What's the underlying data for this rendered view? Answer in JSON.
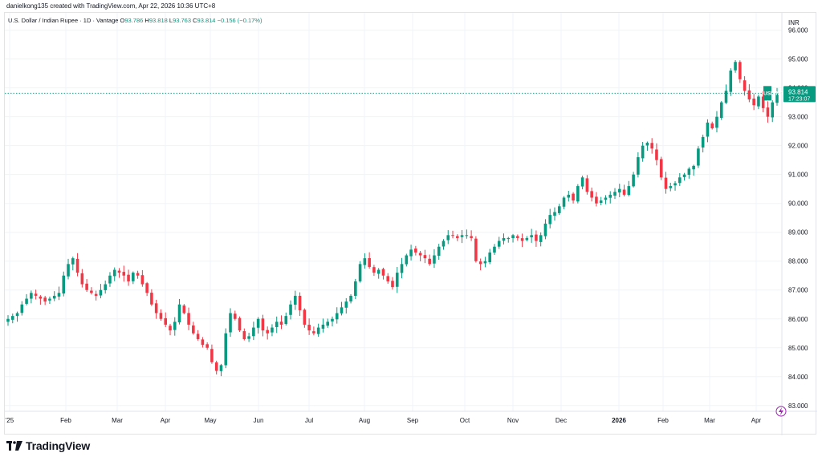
{
  "credit": "danielkong135 created with TradingView.com, Apr 22, 2026 10:36 UTC+8",
  "legend": {
    "symbol": "U.S. Dollar / Indian Rupee · 1D · Vantage",
    "o_label": "O",
    "o_value": "93.786",
    "h_label": "H",
    "h_value": "93.818",
    "l_label": "L",
    "l_value": "93.763",
    "c_label": "C",
    "c_value": "93.814",
    "change": "−0.156 (−0.17%)"
  },
  "currency_label": "INR",
  "price_tag": {
    "symbol": "USDINR",
    "price": "93.814",
    "countdown": "17:23:07"
  },
  "brand": "TradingView",
  "colors": {
    "up": "#089981",
    "down": "#f23645",
    "grid": "#f0f3fa",
    "axis_text": "#131722"
  },
  "chart_data": {
    "type": "candlestick",
    "title": "U.S. Dollar / Indian Rupee · 1D · Vantage",
    "ylim": [
      82.8,
      96.6
    ],
    "y_ticks": [
      "96.000",
      "95.000",
      "94.000",
      "93.000",
      "92.000",
      "91.000",
      "90.000",
      "89.000",
      "88.000",
      "87.000",
      "86.000",
      "85.000",
      "84.000",
      "83.000"
    ],
    "x_ticks": [
      "'25",
      "Feb",
      "Mar",
      "Apr",
      "May",
      "Jun",
      "Jul",
      "Aug",
      "Sep",
      "Oct",
      "Nov",
      "Dec",
      "2026",
      "Feb",
      "Mar",
      "Apr"
    ],
    "last_price": 93.814,
    "closes": [
      86.0,
      86.1,
      86.2,
      86.5,
      86.7,
      86.9,
      86.8,
      86.7,
      86.6,
      86.7,
      86.8,
      86.9,
      87.5,
      87.9,
      88.1,
      87.6,
      87.2,
      87.0,
      86.9,
      86.8,
      87.0,
      87.2,
      87.5,
      87.7,
      87.6,
      87.5,
      87.3,
      87.6,
      87.5,
      87.2,
      86.9,
      86.5,
      86.2,
      86.0,
      85.8,
      85.6,
      85.9,
      86.5,
      86.2,
      85.8,
      85.5,
      85.3,
      85.1,
      85.0,
      84.5,
      84.2,
      84.4,
      85.5,
      86.2,
      86.0,
      85.6,
      85.3,
      85.4,
      85.7,
      86.0,
      85.6,
      85.5,
      85.7,
      85.9,
      85.8,
      86.1,
      86.5,
      86.8,
      86.3,
      85.8,
      85.6,
      85.5,
      85.7,
      85.8,
      85.9,
      86.0,
      86.2,
      86.4,
      86.6,
      86.8,
      87.3,
      87.9,
      88.1,
      87.8,
      87.6,
      87.7,
      87.5,
      87.3,
      87.1,
      87.6,
      87.9,
      88.2,
      88.4,
      88.3,
      88.2,
      88.1,
      87.9,
      88.2,
      88.5,
      88.7,
      88.9,
      88.9,
      88.8,
      88.9,
      88.9,
      88.8,
      88.0,
      87.9,
      88.0,
      88.3,
      88.5,
      88.7,
      88.8,
      88.8,
      88.9,
      88.8,
      88.7,
      88.8,
      88.9,
      88.7,
      88.9,
      89.3,
      89.6,
      89.7,
      89.9,
      90.2,
      90.3,
      90.1,
      90.6,
      90.9,
      90.4,
      90.2,
      90.0,
      90.1,
      90.2,
      90.3,
      90.4,
      90.5,
      90.3,
      90.6,
      91.0,
      91.6,
      92.0,
      92.1,
      91.9,
      91.5,
      90.9,
      90.5,
      90.6,
      90.7,
      90.9,
      91.0,
      91.2,
      91.3,
      91.9,
      92.3,
      92.8,
      92.6,
      93.0,
      93.5,
      93.9,
      94.6,
      94.9,
      94.3,
      93.9,
      93.6,
      93.4,
      93.7,
      93.3,
      93.0,
      93.5,
      93.814
    ]
  }
}
